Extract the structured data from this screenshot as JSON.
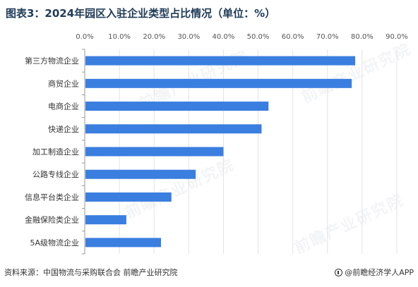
{
  "title": "图表3：2024年园区入驻企业类型占比情况（单位：%）",
  "footer": {
    "source": "资料来源：中国物流与采购联合会  前瞻产业研究院",
    "brand": "@前瞻经济学人APP"
  },
  "watermark": "前瞻产业研究院",
  "colors": {
    "bar": "#3a7ee0",
    "grid": "#e3e3e3",
    "axis": "#999999"
  },
  "chart_data": {
    "type": "bar",
    "orientation": "horizontal",
    "categories": [
      "第三方物流企业",
      "商贸企业",
      "电商企业",
      "快递企业",
      "加工制造企业",
      "公路专线企业",
      "信息平台类企业",
      "金融保险类企业",
      "5A级物流企业"
    ],
    "values": [
      78,
      77,
      53,
      51,
      40,
      32,
      25,
      12,
      22
    ],
    "xlim": [
      0,
      90
    ],
    "ticks": [
      "0.0%",
      "10.0%",
      "20.0%",
      "30.0%",
      "40.0%",
      "50.0%",
      "60.0%",
      "70.0%",
      "80.0%",
      "90.0%"
    ],
    "tick_values": [
      0,
      10,
      20,
      30,
      40,
      50,
      60,
      70,
      80,
      90
    ],
    "axis_position": "top",
    "grid": true
  }
}
